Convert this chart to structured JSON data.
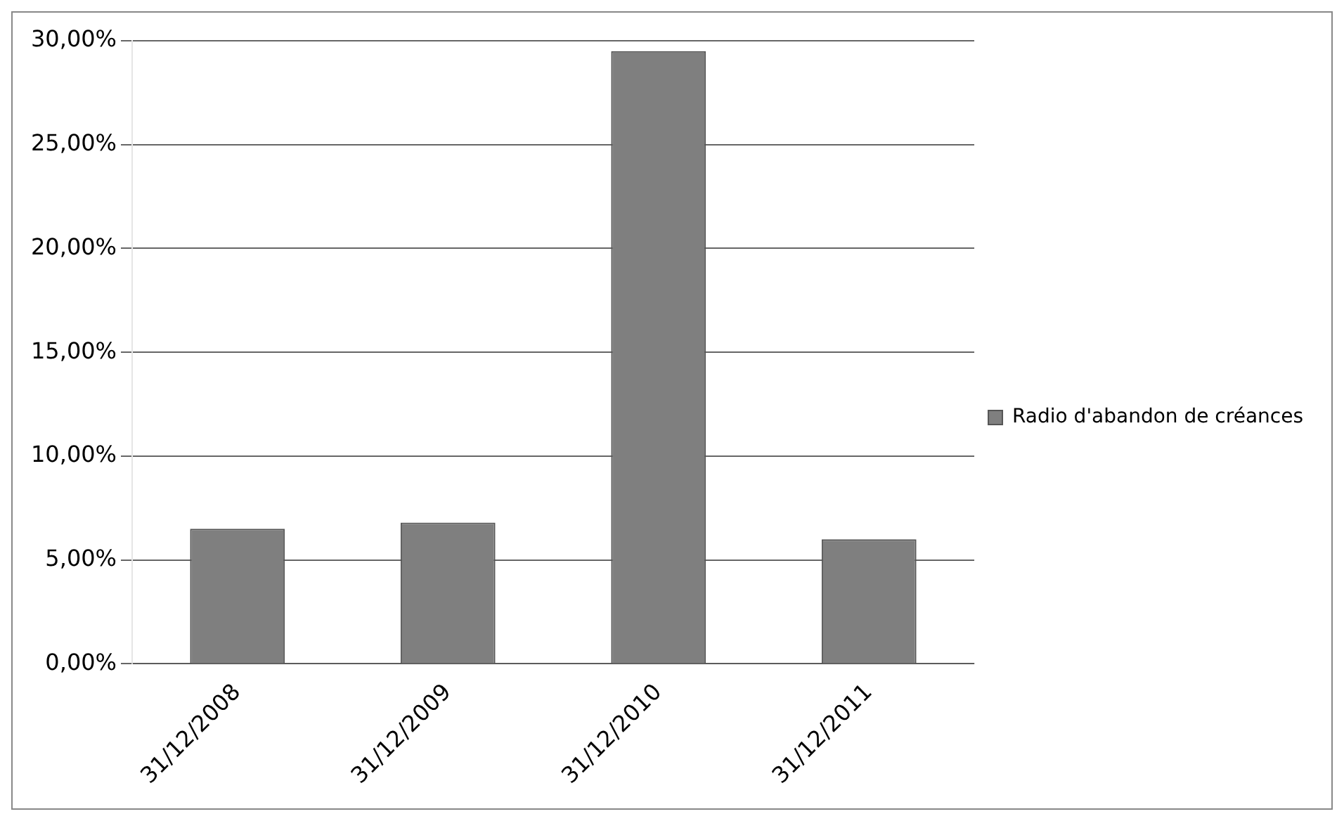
{
  "chart_data": {
    "type": "bar",
    "categories": [
      "31/12/2008",
      "31/12/2009",
      "31/12/2010",
      "31/12/2011"
    ],
    "series": [
      {
        "name": "Radio d'abandon de créances",
        "color": "#7f7f7f",
        "values": [
          6.5,
          6.8,
          29.5,
          6.0
        ]
      }
    ],
    "ylim": [
      0,
      30
    ],
    "yticks": [
      {
        "value": 0,
        "label": "0,00%"
      },
      {
        "value": 5,
        "label": "5,00%"
      },
      {
        "value": 10,
        "label": "10,00%"
      },
      {
        "value": 15,
        "label": "15,00%"
      },
      {
        "value": 20,
        "label": "20,00%"
      },
      {
        "value": 25,
        "label": "25,00%"
      },
      {
        "value": 30,
        "label": "30,00%"
      }
    ],
    "grid": "y",
    "legend": "right"
  }
}
